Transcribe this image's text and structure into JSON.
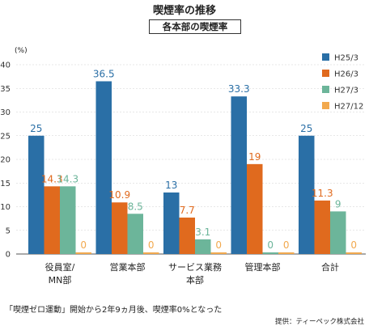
{
  "title": "喫煙率の推移",
  "subtitle": "各本部の喫煙率",
  "unit": "(%)",
  "footnote": "「喫煙ゼロ運動」開始から2年9ヵ月後、喫煙率0%となった",
  "source": "提供：ティーペック株式会社",
  "chart_data": {
    "type": "bar",
    "categories": [
      "役員室/\nMN部",
      "営業本部",
      "サービス業務\n本部",
      "管理本部",
      "合計"
    ],
    "series": [
      {
        "name": "H25/3",
        "color": "#2a6fa6",
        "values": [
          25,
          36.5,
          13,
          33.3,
          25
        ]
      },
      {
        "name": "H26/3",
        "color": "#e06a1e",
        "values": [
          14.3,
          10.9,
          7.7,
          19,
          11.3
        ]
      },
      {
        "name": "H27/3",
        "color": "#6cb59a",
        "values": [
          14.3,
          8.5,
          3.1,
          0,
          9
        ]
      },
      {
        "name": "H27/12",
        "color": "#f2a94e",
        "values": [
          0,
          0,
          0,
          0,
          0
        ]
      }
    ],
    "yticks": [
      0,
      5,
      10,
      15,
      20,
      25,
      30,
      35,
      40
    ],
    "ylim": [
      0,
      40
    ],
    "legend": "top-right"
  }
}
